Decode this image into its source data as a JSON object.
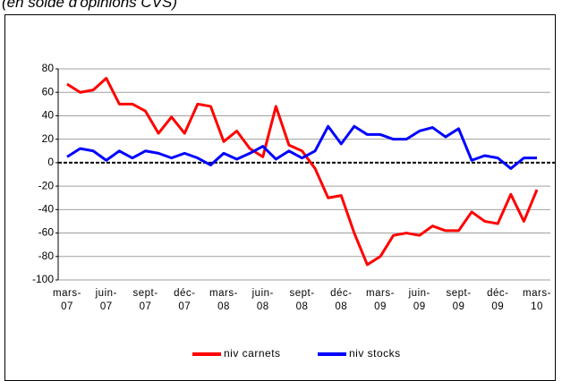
{
  "chart_data": {
    "type": "line",
    "title": "(en solde d'opinions CVS)",
    "categories": [
      "mars-07",
      null,
      null,
      "juin-07",
      null,
      null,
      "sept-07",
      null,
      null,
      "déc-07",
      null,
      null,
      "mars-08",
      null,
      null,
      "juin-08",
      null,
      null,
      "sept-08",
      null,
      null,
      "déc-08",
      null,
      null,
      "mars-09",
      null,
      null,
      "juin-09",
      null,
      null,
      "sept-09",
      null,
      null,
      "déc-09",
      null,
      null,
      "mars-10"
    ],
    "series": [
      {
        "name": "niv carnets",
        "color": "#ff0000",
        "values": [
          67,
          60,
          62,
          72,
          50,
          50,
          44,
          25,
          39,
          25,
          50,
          48,
          18,
          27,
          12,
          5,
          48,
          15,
          10,
          -5,
          -30,
          -28,
          -60,
          -87,
          -80,
          -62,
          -60,
          -62,
          -54,
          -58,
          -58,
          -42,
          -50,
          -52,
          -27,
          -50,
          -23
        ]
      },
      {
        "name": "niv stocks",
        "color": "#0000ff",
        "values": [
          5,
          12,
          10,
          2,
          10,
          4,
          10,
          8,
          4,
          8,
          4,
          -2,
          8,
          3,
          8,
          14,
          3,
          10,
          4,
          10,
          31,
          16,
          31,
          24,
          24,
          20,
          20,
          27,
          30,
          22,
          29,
          2,
          6,
          4,
          -5,
          4,
          4
        ]
      }
    ],
    "ylim": [
      -100,
      80
    ],
    "yticks": [
      -100,
      -80,
      -60,
      -40,
      -20,
      0,
      20,
      40,
      60,
      80
    ],
    "grid": true,
    "legend": "bottom"
  }
}
